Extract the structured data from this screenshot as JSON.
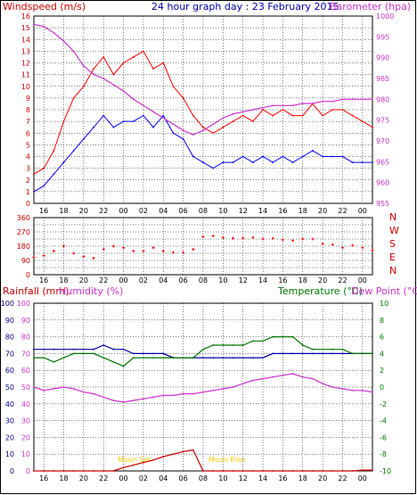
{
  "colors": {
    "wind": "#ff0000",
    "gust": "#0000ff",
    "barometer": "#cc33cc",
    "direction": "#ff0000",
    "humidity": "#cc33cc",
    "temperature": "#0000aa",
    "dewpoint": "#007700",
    "rainfall": "#cc0000",
    "moon": "#ffcc00",
    "grid": "#000000"
  },
  "header": {
    "windspeed_label": "Windspeed (m/s)",
    "title": "24 hour graph day : 23 February 2015",
    "barometer_label": "Barometer (hpa)"
  },
  "middle": {
    "compass": [
      "N",
      "W",
      "S",
      "E",
      "N"
    ]
  },
  "bottom": {
    "rainfall_label": "Rainfall (mm)",
    "humidity_label": "Humidity (%)",
    "temperature_label": "Temperature (°C)",
    "dewpoint_label": "Dew Point (°C)",
    "moonset_label": "Moon Set",
    "moonrise_label": "Moon Rise"
  },
  "x_ticks": [
    "16",
    "18",
    "20",
    "22",
    "00",
    "02",
    "04",
    "06",
    "08",
    "10",
    "12",
    "14",
    "16",
    "18",
    "20",
    "22",
    "00"
  ],
  "chart_data": [
    {
      "type": "line",
      "title": "24 hour graph day : 23 February 2015",
      "xlabel": "",
      "x_hours": [
        15,
        16,
        17,
        18,
        19,
        20,
        21,
        22,
        23,
        24,
        25,
        26,
        27,
        28,
        29,
        30,
        31,
        32,
        33,
        34,
        35,
        36,
        37,
        38,
        39,
        40,
        41,
        42,
        43,
        44,
        45,
        46,
        47,
        48,
        49
      ],
      "series": [
        {
          "name": "Windspeed (m/s)",
          "axis": "left",
          "values": [
            2.5,
            3,
            4.5,
            7,
            9,
            10,
            11.5,
            12.5,
            11,
            12,
            12.5,
            13,
            11.5,
            12,
            10,
            9,
            7.5,
            6.5,
            6,
            6.5,
            7,
            7.5,
            7,
            8,
            7.5,
            8,
            7.5,
            7.5,
            8.5,
            7.5,
            8,
            8,
            7.5,
            7,
            6.5
          ]
        },
        {
          "name": "Windspeed (m/s)",
          "axis": "left",
          "values": [
            1,
            1.5,
            2.5,
            3.5,
            4.5,
            5.5,
            6.5,
            7.5,
            6.5,
            7,
            7,
            7.5,
            6.5,
            7.5,
            6,
            5.5,
            4,
            3.5,
            3,
            3.5,
            3.5,
            4,
            3.5,
            4,
            3.5,
            4,
            3.5,
            4,
            4.5,
            4,
            4,
            4,
            3.5,
            3.5,
            3.5
          ]
        },
        {
          "name": "Barometer (hpa)",
          "axis": "right",
          "values": [
            998,
            997.5,
            996,
            994,
            991.5,
            988,
            986,
            985,
            983.5,
            982,
            980,
            978.5,
            977,
            975.5,
            974,
            972.5,
            971.5,
            972.5,
            974,
            975.5,
            976.5,
            977,
            977.5,
            978,
            978.5,
            978.5,
            978.5,
            979,
            979,
            979.5,
            979.5,
            980,
            980,
            980,
            980
          ]
        }
      ],
      "ylim": [
        0,
        16
      ],
      "y2lim": [
        955,
        1000
      ],
      "grid": true
    },
    {
      "type": "scatter",
      "title": "",
      "x_hours": [
        15,
        16,
        17,
        18,
        19,
        20,
        21,
        22,
        23,
        24,
        25,
        26,
        27,
        28,
        29,
        30,
        31,
        32,
        33,
        34,
        35,
        36,
        37,
        38,
        39,
        40,
        41,
        42,
        43,
        44,
        45,
        46,
        47,
        48,
        49
      ],
      "values": [
        110,
        120,
        150,
        180,
        135,
        115,
        105,
        160,
        180,
        170,
        150,
        150,
        170,
        150,
        140,
        140,
        160,
        240,
        245,
        235,
        230,
        230,
        235,
        225,
        230,
        220,
        215,
        225,
        225,
        195,
        190,
        170,
        185,
        170,
        155
      ],
      "ylim": [
        0,
        360
      ],
      "yticks": [
        0,
        45,
        90,
        135,
        180,
        225,
        270,
        315,
        360
      ],
      "grid": true
    },
    {
      "type": "line",
      "title": "",
      "x_hours": [
        15,
        16,
        17,
        18,
        19,
        20,
        21,
        22,
        23,
        24,
        25,
        26,
        27,
        28,
        29,
        30,
        31,
        32,
        33,
        34,
        35,
        36,
        37,
        38,
        39,
        40,
        41,
        42,
        43,
        44,
        45,
        46,
        47,
        48,
        49
      ],
      "series": [
        {
          "name": "Humidity (%)",
          "axis": "left",
          "values": [
            50,
            48,
            49,
            50,
            49,
            47,
            46,
            44,
            42,
            41,
            42,
            43,
            44,
            45,
            45,
            46,
            46,
            47,
            48,
            49,
            50,
            52,
            54,
            55,
            56,
            57,
            58,
            56,
            55,
            52,
            50,
            49,
            48,
            48,
            47
          ]
        },
        {
          "name": "Temperature (°C)",
          "axis": "right",
          "values": [
            4.5,
            4.5,
            4.5,
            4.5,
            4.5,
            4.5,
            4.5,
            5,
            4.5,
            4.5,
            4,
            4,
            4,
            4,
            3.5,
            3.5,
            3.5,
            3.5,
            3.5,
            3.5,
            3.5,
            3.5,
            3.5,
            3.5,
            4,
            4,
            4,
            4,
            4,
            4,
            4,
            4,
            4,
            4,
            4
          ]
        },
        {
          "name": "Dew Point (°C)",
          "axis": "right",
          "values": [
            3.5,
            3.5,
            3,
            3.5,
            4,
            4,
            4,
            3.5,
            3,
            2.5,
            3.5,
            3.5,
            3.5,
            3.5,
            3.5,
            3.5,
            3.5,
            4.5,
            5,
            5,
            5,
            5,
            5.5,
            5.5,
            6,
            6,
            6,
            5,
            4.5,
            4.5,
            4.5,
            4.5,
            4,
            4,
            4
          ]
        },
        {
          "name": "Rainfall (mm)",
          "axis": "left",
          "values": [
            0,
            0,
            0,
            0,
            0,
            0,
            0,
            0,
            0,
            2,
            3.5,
            5,
            6.5,
            8.5,
            10,
            11.5,
            12.5,
            0,
            0,
            0,
            0,
            0,
            0,
            0,
            0,
            0,
            0,
            0,
            0,
            0,
            0,
            0,
            0,
            0.5,
            0.5
          ]
        }
      ],
      "ylim": [
        0,
        100
      ],
      "y2lim": [
        -10,
        10
      ],
      "grid": true
    }
  ]
}
